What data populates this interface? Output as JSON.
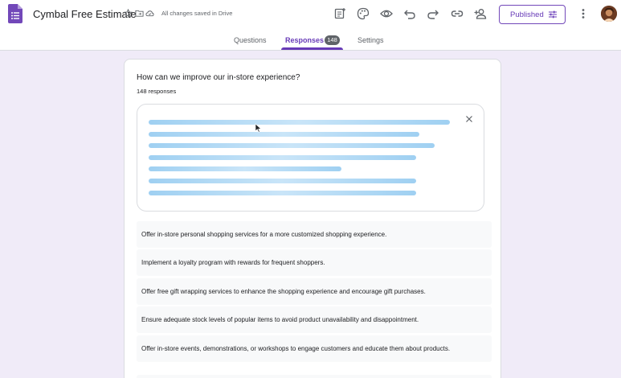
{
  "header": {
    "title": "Cymbal Free Estimate",
    "saved_status": "All changes saved in Drive",
    "publish_label": "Published",
    "toolbar_icons": [
      "add-ons-icon",
      "palette-icon",
      "preview-icon",
      "undo-icon",
      "redo-icon",
      "link-icon",
      "add-collaborator-icon"
    ]
  },
  "tabs": [
    {
      "label": "Questions"
    },
    {
      "label": "Responses",
      "badge": "148"
    },
    {
      "label": "Settings"
    }
  ],
  "question": {
    "title": "How can we improve our in-store experience?",
    "count": "148 responses"
  },
  "answers": [
    "Offer in-store personal shopping services for a more customized shopping experience.",
    "Implement a loyalty program with rewards for frequent shoppers.",
    "Offer free gift wrapping services to enhance the shopping experience and encourage gift purchases.",
    "Ensure adequate stock levels of popular items to avoid product unavailability and disappointment.",
    "Offer in-store events, demonstrations, or workshops to engage customers and educate them about products."
  ],
  "colors": {
    "accent": "#673ab7",
    "background": "#f0ebf8",
    "loading_bar": "#9fd0f2"
  }
}
